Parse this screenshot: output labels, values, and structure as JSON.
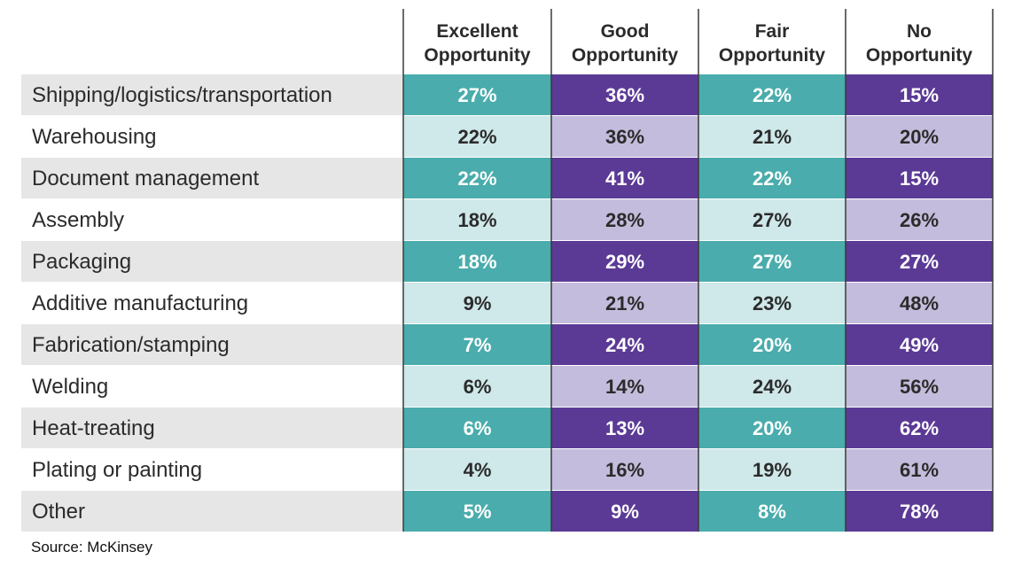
{
  "colors": {
    "teal_dark": "#4aacac",
    "teal_light": "#cfe8e9",
    "purple_dark": "#5b3a96",
    "purple_light": "#c4bcdc",
    "label_bg_gray": "#e6e6e6",
    "divider": "#3a3a3a"
  },
  "chart_data": {
    "type": "table",
    "columns": [
      [
        "Excellent",
        "Opportunity"
      ],
      [
        "Good",
        "Opportunity"
      ],
      [
        "Fair",
        "Opportunity"
      ],
      [
        "No",
        "Opportunity"
      ]
    ],
    "rows": [
      {
        "label": "Shipping/logistics/transportation",
        "values": [
          "27%",
          "36%",
          "22%",
          "15%"
        ]
      },
      {
        "label": "Warehousing",
        "values": [
          "22%",
          "36%",
          "21%",
          "20%"
        ]
      },
      {
        "label": "Document management",
        "values": [
          "22%",
          "41%",
          "22%",
          "15%"
        ]
      },
      {
        "label": "Assembly",
        "values": [
          "18%",
          "28%",
          "27%",
          "26%"
        ]
      },
      {
        "label": "Packaging",
        "values": [
          "18%",
          "29%",
          "27%",
          "27%"
        ]
      },
      {
        "label": "Additive manufacturing",
        "values": [
          "9%",
          "21%",
          "23%",
          "48%"
        ]
      },
      {
        "label": "Fabrication/stamping",
        "values": [
          "7%",
          "24%",
          "20%",
          "49%"
        ]
      },
      {
        "label": "Welding",
        "values": [
          "6%",
          "14%",
          "24%",
          "56%"
        ]
      },
      {
        "label": "Heat-treating",
        "values": [
          "6%",
          "13%",
          "20%",
          "62%"
        ]
      },
      {
        "label": "Plating or painting",
        "values": [
          "4%",
          "16%",
          "19%",
          "61%"
        ]
      },
      {
        "label": "Other",
        "values": [
          "5%",
          "9%",
          "8%",
          "78%"
        ]
      }
    ]
  },
  "source": "Source: McKinsey"
}
